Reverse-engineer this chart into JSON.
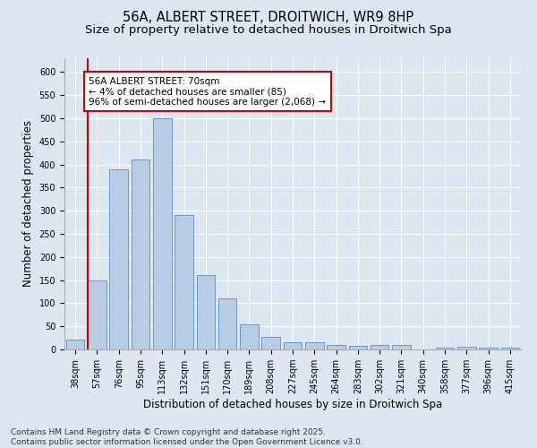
{
  "title_line1": "56A, ALBERT STREET, DROITWICH, WR9 8HP",
  "title_line2": "Size of property relative to detached houses in Droitwich Spa",
  "xlabel": "Distribution of detached houses by size in Droitwich Spa",
  "ylabel": "Number of detached properties",
  "categories": [
    "38sqm",
    "57sqm",
    "76sqm",
    "95sqm",
    "113sqm",
    "132sqm",
    "151sqm",
    "170sqm",
    "189sqm",
    "208sqm",
    "227sqm",
    "245sqm",
    "264sqm",
    "283sqm",
    "302sqm",
    "321sqm",
    "340sqm",
    "358sqm",
    "377sqm",
    "396sqm",
    "415sqm"
  ],
  "values": [
    22,
    150,
    390,
    410,
    500,
    290,
    160,
    110,
    55,
    28,
    15,
    15,
    10,
    7,
    9,
    10,
    0,
    3,
    5,
    3,
    3
  ],
  "bar_color": "#b8cce4",
  "bar_edge_color": "#5b8cc8",
  "red_line_index": 1,
  "annotation_text": "56A ALBERT STREET: 70sqm\n← 4% of detached houses are smaller (85)\n96% of semi-detached houses are larger (2,068) →",
  "annotation_box_color": "#ffffff",
  "annotation_box_edge": "#cc0000",
  "background_color": "#dce6f1",
  "plot_bg_color": "#dce6f1",
  "ylim": [
    0,
    630
  ],
  "yticks": [
    0,
    50,
    100,
    150,
    200,
    250,
    300,
    350,
    400,
    450,
    500,
    550,
    600
  ],
  "footer_line1": "Contains HM Land Registry data © Crown copyright and database right 2025.",
  "footer_line2": "Contains public sector information licensed under the Open Government Licence v3.0.",
  "title_fontsize": 10.5,
  "subtitle_fontsize": 9.5,
  "axis_label_fontsize": 8.5,
  "tick_fontsize": 7,
  "annotation_fontsize": 7.5,
  "footer_fontsize": 6.5
}
